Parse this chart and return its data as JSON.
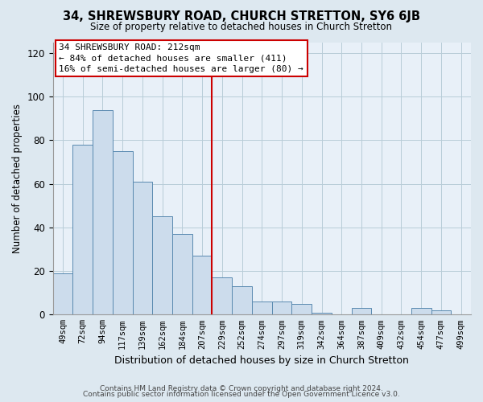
{
  "title": "34, SHREWSBURY ROAD, CHURCH STRETTON, SY6 6JB",
  "subtitle": "Size of property relative to detached houses in Church Stretton",
  "xlabel": "Distribution of detached houses by size in Church Stretton",
  "ylabel": "Number of detached properties",
  "footer_lines": [
    "Contains HM Land Registry data © Crown copyright and database right 2024.",
    "Contains public sector information licensed under the Open Government Licence v3.0."
  ],
  "bar_labels": [
    "49sqm",
    "72sqm",
    "94sqm",
    "117sqm",
    "139sqm",
    "162sqm",
    "184sqm",
    "207sqm",
    "229sqm",
    "252sqm",
    "274sqm",
    "297sqm",
    "319sqm",
    "342sqm",
    "364sqm",
    "387sqm",
    "409sqm",
    "432sqm",
    "454sqm",
    "477sqm",
    "499sqm"
  ],
  "bar_values": [
    19,
    78,
    94,
    75,
    61,
    45,
    37,
    27,
    17,
    13,
    6,
    6,
    5,
    1,
    0,
    3,
    0,
    0,
    3,
    2,
    0
  ],
  "bar_color": "#ccdcec",
  "bar_edge_color": "#5a8ab0",
  "vline_color": "#cc0000",
  "annotation_text_line1": "34 SHREWSBURY ROAD: 212sqm",
  "annotation_text_line2": "← 84% of detached houses are smaller (411)",
  "annotation_text_line3": "16% of semi-detached houses are larger (80) →",
  "ylim": [
    0,
    125
  ],
  "yticks": [
    0,
    20,
    40,
    60,
    80,
    100,
    120
  ],
  "bg_color": "#dde8f0",
  "plot_bg_color": "#e8f0f8",
  "grid_color": "#b8ccd8"
}
